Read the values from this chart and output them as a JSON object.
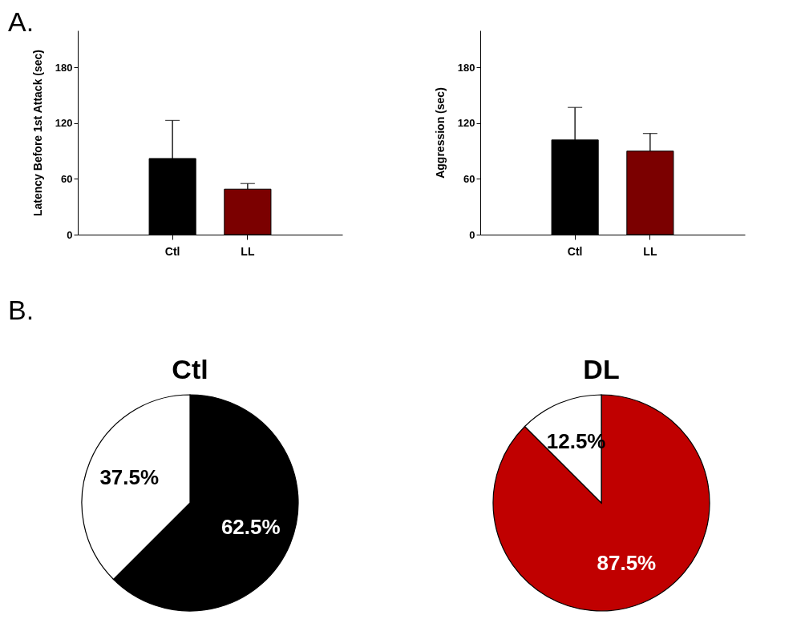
{
  "chart_data": [
    {
      "type": "bar",
      "annotations": [
        "A."
      ],
      "ylabel": "Latency Before 1st Attack (sec)",
      "categories": [
        "Ctl",
        "LL"
      ],
      "values": [
        82,
        49
      ],
      "errors": [
        [
          82,
          123
        ],
        [
          49,
          55
        ]
      ],
      "colors": [
        "#000000",
        "#7b0000"
      ],
      "ylim": [
        0,
        220
      ],
      "yticks": [
        0,
        60,
        120,
        180
      ],
      "grid": false,
      "legend": false
    },
    {
      "type": "bar",
      "ylabel": "Aggression (sec)",
      "categories": [
        "Ctl",
        "LL"
      ],
      "values": [
        102,
        90
      ],
      "errors": [
        [
          102,
          137
        ],
        [
          90,
          109
        ]
      ],
      "colors": [
        "#000000",
        "#7b0000"
      ],
      "ylim": [
        0,
        220
      ],
      "yticks": [
        0,
        60,
        120,
        180
      ],
      "grid": false,
      "legend": false
    },
    {
      "type": "pie",
      "annotations": [
        "B."
      ],
      "title": "Ctl",
      "categories": [
        null,
        null
      ],
      "values": [
        62.5,
        37.5
      ],
      "colors": [
        "#000000",
        "#ffffff"
      ],
      "value_labels": [
        "62.5%",
        "37.5%"
      ],
      "legend": false
    },
    {
      "type": "pie",
      "title": "DL",
      "categories": [
        null,
        null
      ],
      "values": [
        87.5,
        12.5
      ],
      "colors": [
        "#c00000",
        "#ffffff"
      ],
      "value_labels": [
        "87.5%",
        "12.5%"
      ],
      "legend": false
    }
  ]
}
